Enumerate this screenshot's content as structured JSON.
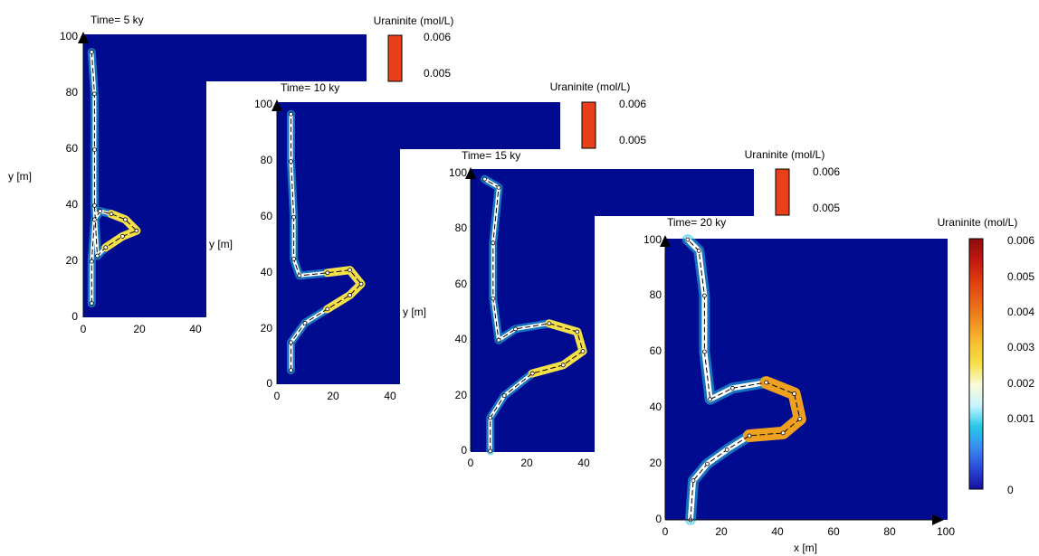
{
  "figure": {
    "y_axis_label_outer": "y [m]",
    "x_axis_label": "x [m]"
  },
  "colors": {
    "background": "#000b8f",
    "white": "#ffffff",
    "cyan": "#27c8e8",
    "lightblue": "#4f9cff",
    "yellow": "#f6e04a",
    "orange": "#eea020",
    "outline": "#000000"
  },
  "colorbar": {
    "title": "Uraninite (mol/L)",
    "ticks": [
      "0.006",
      "0.005",
      "0.004",
      "0.003",
      "0.002",
      "0.001",
      "0"
    ],
    "stops": [
      "#1410a0",
      "#2a4bd8",
      "#3a8cf0",
      "#27c8e8",
      "#c9f4ff",
      "#fbfbd8",
      "#f6e04a",
      "#f7c030",
      "#ef9020",
      "#e86418",
      "#de3c10",
      "#c01810",
      "#8a0c0c"
    ]
  },
  "chart_data": [
    {
      "type": "heatmap",
      "title": "Time= 5 ky",
      "xlabel": "",
      "ylabel": "y [m]",
      "xlim": [
        0,
        100
      ],
      "ylim": [
        0,
        100
      ],
      "x_ticks": [
        "0",
        "20",
        "40"
      ],
      "y_ticks": [
        "0",
        "20",
        "40",
        "60",
        "80",
        "100"
      ],
      "colorbar_label": "Uraninite (mol/L)",
      "colorbar_ticks_visible": [
        "0.006",
        "0.005"
      ],
      "uraninite_front": [
        [
          3,
          5
        ],
        [
          3,
          20
        ],
        [
          4,
          35
        ],
        [
          6,
          38
        ],
        [
          10,
          37
        ],
        [
          15,
          35
        ],
        [
          19,
          31
        ],
        [
          14,
          29
        ],
        [
          8,
          25
        ],
        [
          5,
          22
        ],
        [
          4,
          40
        ],
        [
          4,
          60
        ],
        [
          4,
          80
        ],
        [
          3,
          95
        ]
      ]
    },
    {
      "type": "heatmap",
      "title": "Time= 10 ky",
      "xlabel": "",
      "ylabel": "y [m]",
      "xlim": [
        0,
        100
      ],
      "ylim": [
        0,
        100
      ],
      "x_ticks": [
        "0",
        "20",
        "40"
      ],
      "y_ticks": [
        "0",
        "20",
        "40",
        "60",
        "80",
        "100"
      ],
      "colorbar_label": "Uraninite (mol/L)",
      "colorbar_ticks_visible": [
        "0.006",
        "0.005"
      ],
      "uraninite_front": [
        [
          5,
          5
        ],
        [
          5,
          15
        ],
        [
          10,
          22
        ],
        [
          18,
          27
        ],
        [
          26,
          32
        ],
        [
          30,
          36
        ],
        [
          26,
          41
        ],
        [
          18,
          40
        ],
        [
          8,
          39
        ],
        [
          6,
          45
        ],
        [
          6,
          60
        ],
        [
          5,
          80
        ],
        [
          5,
          97
        ]
      ]
    },
    {
      "type": "heatmap",
      "title": "Time= 15 ky",
      "xlabel": "",
      "ylabel": "y [m]",
      "xlim": [
        0,
        100
      ],
      "ylim": [
        0,
        100
      ],
      "x_ticks": [
        "0",
        "20",
        "40"
      ],
      "y_ticks": [
        "0",
        "20",
        "40",
        "60",
        "80",
        "100"
      ],
      "colorbar_label": "Uraninite (mol/L)",
      "colorbar_ticks_visible": [
        "0.006",
        "0.005"
      ],
      "uraninite_front": [
        [
          7,
          0
        ],
        [
          7,
          12
        ],
        [
          12,
          20
        ],
        [
          22,
          28
        ],
        [
          33,
          31
        ],
        [
          40,
          36
        ],
        [
          38,
          43
        ],
        [
          28,
          46
        ],
        [
          16,
          44
        ],
        [
          10,
          40
        ],
        [
          8,
          55
        ],
        [
          8,
          75
        ],
        [
          10,
          95
        ],
        [
          5,
          98
        ]
      ]
    },
    {
      "type": "heatmap",
      "title": "Time= 20 ky",
      "xlabel": "x [m]",
      "ylabel": "",
      "xlim": [
        0,
        100
      ],
      "ylim": [
        0,
        100
      ],
      "x_ticks": [
        "0",
        "20",
        "40",
        "60",
        "80",
        "100"
      ],
      "y_ticks": [
        "0",
        "20",
        "40",
        "60",
        "80",
        "100"
      ],
      "colorbar_label": "Uraninite (mol/L)",
      "colorbar_ticks_visible": [
        "0.006",
        "0.005",
        "0.004",
        "0.003",
        "0.002",
        "0.001",
        "0"
      ],
      "uraninite_front": [
        [
          9,
          0
        ],
        [
          10,
          14
        ],
        [
          15,
          20
        ],
        [
          22,
          25
        ],
        [
          30,
          30
        ],
        [
          42,
          31
        ],
        [
          48,
          36
        ],
        [
          46,
          45
        ],
        [
          36,
          49
        ],
        [
          24,
          47
        ],
        [
          16,
          43
        ],
        [
          14,
          60
        ],
        [
          14,
          80
        ],
        [
          12,
          96
        ],
        [
          8,
          100
        ]
      ]
    }
  ]
}
